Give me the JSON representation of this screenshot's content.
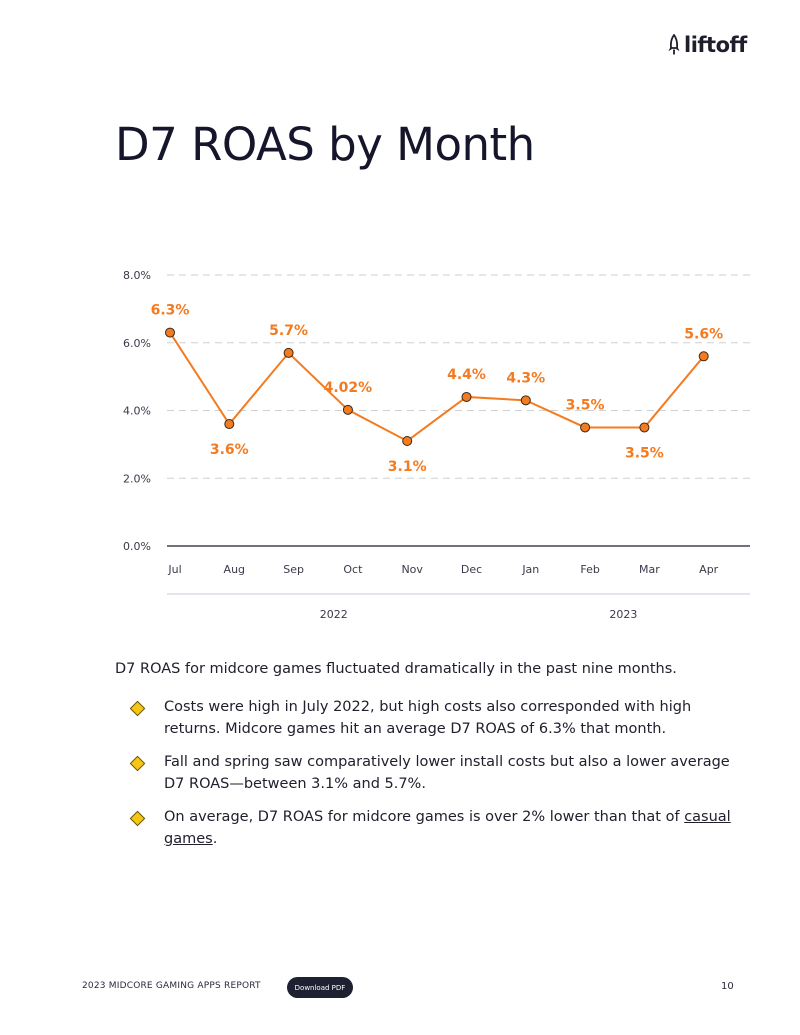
{
  "brand": {
    "name": "liftoff"
  },
  "title": "D7 ROAS by Month",
  "chart_data": {
    "type": "line",
    "title": "D7 ROAS by Month",
    "xlabel": "",
    "ylabel": "",
    "categories": [
      "Jul",
      "Aug",
      "Sep",
      "Oct",
      "Nov",
      "Dec",
      "Jan",
      "Feb",
      "Mar",
      "Apr"
    ],
    "values": [
      6.3,
      3.6,
      5.7,
      4.02,
      3.1,
      4.4,
      4.3,
      3.5,
      3.5,
      5.6
    ],
    "data_labels": [
      "6.3%",
      "3.6%",
      "5.7%",
      "4.02%",
      "3.1%",
      "4.4%",
      "4.3%",
      "3.5%",
      "3.5%",
      "5.6%"
    ],
    "label_position": [
      "above",
      "below",
      "above",
      "above",
      "below",
      "above",
      "above",
      "above",
      "below",
      "above"
    ],
    "ylim": [
      0,
      8
    ],
    "yticks": [
      0,
      2,
      4,
      6,
      8
    ],
    "ytick_labels": [
      "0.0%",
      "2.0%",
      "4.0%",
      "6.0%",
      "8.0%"
    ],
    "grid": true,
    "year_groups": [
      {
        "label": "2022",
        "start": 0,
        "end": 5
      },
      {
        "label": "2023",
        "start": 6,
        "end": 9
      }
    ],
    "colors": {
      "line": "#f47b20",
      "marker": "#f47b20",
      "label": "#f47b20",
      "grid": "#cfcfd6"
    }
  },
  "body": {
    "intro": "D7 ROAS for midcore games fluctuated dramatically in the past nine months.",
    "bullets": [
      "Costs were high in July 2022, but high costs also corresponded with high returns. Midcore games hit an average D7 ROAS of 6.3% that month.",
      "Fall and spring saw comparatively lower install costs but also a lower average D7 ROAS—between 3.1% and 5.7%."
    ],
    "bullet3_text": "On average, D7 ROAS for midcore games is over 2% lower than that of",
    "bullet3_link": "casual games",
    "bullet3_end": "."
  },
  "footer": {
    "report_title": "2023 MIDCORE GAMING APPS REPORT",
    "download_label": "Download PDF",
    "page_number": "10"
  }
}
